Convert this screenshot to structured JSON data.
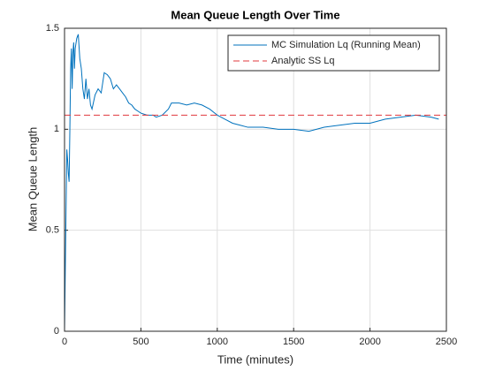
{
  "chart_data": {
    "type": "line",
    "title": "Mean Queue Length Over Time",
    "xlabel": "Time (minutes)",
    "ylabel": "Mean Queue Length",
    "xlim": [
      0,
      2500
    ],
    "ylim": [
      0,
      1.5
    ],
    "xticks": [
      0,
      500,
      1000,
      1500,
      2000,
      2500
    ],
    "yticks": [
      0,
      0.5,
      1,
      1.5
    ],
    "grid": true,
    "legend": "northeast",
    "series": [
      {
        "name": "MC Simulation Lq (Running Mean)",
        "color": "#0072bd",
        "style": "solid",
        "x": [
          0,
          5,
          10,
          15,
          20,
          25,
          30,
          35,
          40,
          45,
          50,
          55,
          60,
          65,
          70,
          80,
          90,
          100,
          110,
          120,
          130,
          140,
          150,
          160,
          170,
          180,
          200,
          220,
          240,
          260,
          280,
          300,
          320,
          340,
          360,
          380,
          400,
          420,
          440,
          460,
          480,
          500,
          540,
          580,
          600,
          640,
          680,
          700,
          750,
          800,
          850,
          900,
          950,
          1000,
          1050,
          1100,
          1150,
          1200,
          1300,
          1400,
          1500,
          1600,
          1700,
          1800,
          1900,
          2000,
          2100,
          2200,
          2300,
          2400,
          2450
        ],
        "values": [
          0,
          0.3,
          0.6,
          0.9,
          0.85,
          0.78,
          0.74,
          1.0,
          1.3,
          1.4,
          1.2,
          1.38,
          1.43,
          1.3,
          1.4,
          1.45,
          1.47,
          1.35,
          1.3,
          1.2,
          1.15,
          1.25,
          1.15,
          1.2,
          1.12,
          1.1,
          1.17,
          1.2,
          1.18,
          1.28,
          1.27,
          1.25,
          1.2,
          1.22,
          1.2,
          1.18,
          1.16,
          1.13,
          1.12,
          1.1,
          1.09,
          1.08,
          1.07,
          1.07,
          1.06,
          1.07,
          1.1,
          1.13,
          1.13,
          1.12,
          1.13,
          1.12,
          1.1,
          1.07,
          1.05,
          1.03,
          1.02,
          1.01,
          1.01,
          1.0,
          1.0,
          0.99,
          1.01,
          1.02,
          1.03,
          1.03,
          1.05,
          1.06,
          1.07,
          1.06,
          1.05
        ]
      },
      {
        "name": "Analytic SS Lq",
        "color": "#e0383e",
        "style": "dashed",
        "x": [
          0,
          2500
        ],
        "values": [
          1.07,
          1.07
        ]
      }
    ]
  }
}
